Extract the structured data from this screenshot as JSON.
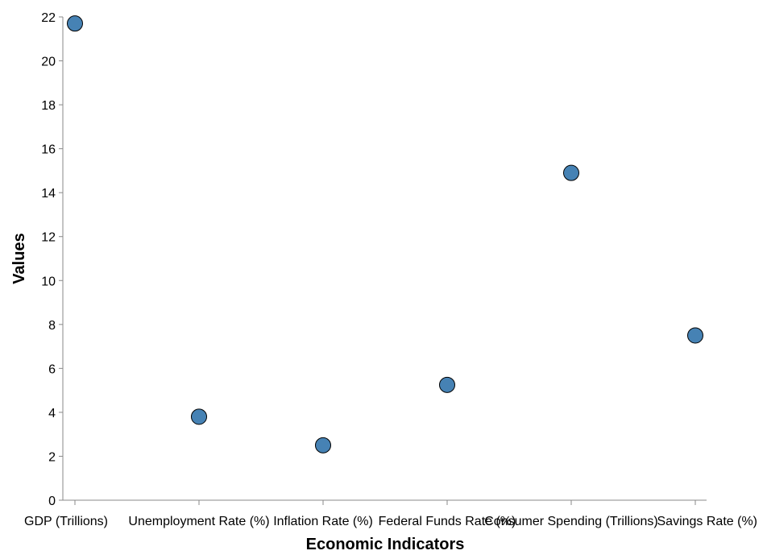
{
  "chart_data": {
    "type": "scatter",
    "title": "",
    "xlabel": "Economic Indicators",
    "ylabel": "Values",
    "categories": [
      "GDP (Trillions)",
      "Unemployment Rate (%)",
      "Inflation Rate (%)",
      "Federal Funds Rate (%)",
      "Consumer Spending (Trillions)",
      "Savings Rate (%)"
    ],
    "values": [
      21.7,
      3.8,
      2.5,
      5.25,
      14.9,
      7.5
    ],
    "ylim": [
      0,
      22
    ],
    "yticks": [
      0,
      2,
      4,
      6,
      8,
      10,
      12,
      14,
      16,
      18,
      20,
      22
    ],
    "grid": false,
    "legend": "none",
    "point_color": "#4682b4",
    "point_stroke": "#000000",
    "axis_color": "#888888"
  }
}
